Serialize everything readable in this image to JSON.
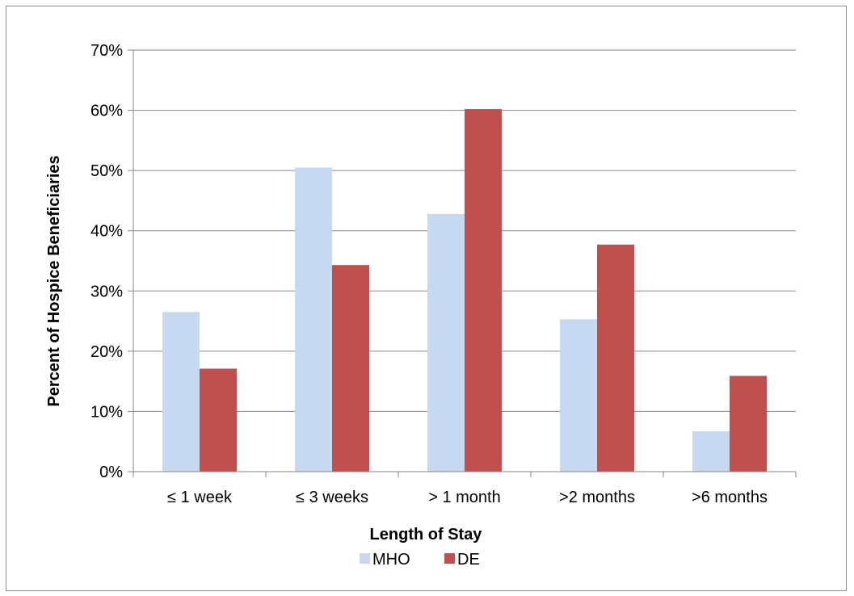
{
  "chart_data": {
    "type": "bar",
    "title": "",
    "xlabel": "Length of Stay",
    "ylabel": "Percent of Hospice Beneficiaries",
    "categories": [
      "≤ 1 week",
      "≤ 3 weeks",
      "> 1 month",
      ">2 months",
      ">6 months"
    ],
    "series": [
      {
        "name": "MHO",
        "values": [
          26.5,
          50.5,
          42.8,
          25.3,
          6.7
        ],
        "color": "#c6d9f1"
      },
      {
        "name": "DE",
        "values": [
          17.1,
          34.3,
          60.2,
          37.7,
          15.9
        ],
        "color": "#c0504d"
      }
    ],
    "ylim": [
      0,
      70
    ],
    "yticks": [
      0,
      10,
      20,
      30,
      40,
      50,
      60,
      70
    ],
    "ytick_labels": [
      "0%",
      "10%",
      "20%",
      "30%",
      "40%",
      "50%",
      "60%",
      "70%"
    ],
    "grid": true,
    "legend": "bottom"
  }
}
